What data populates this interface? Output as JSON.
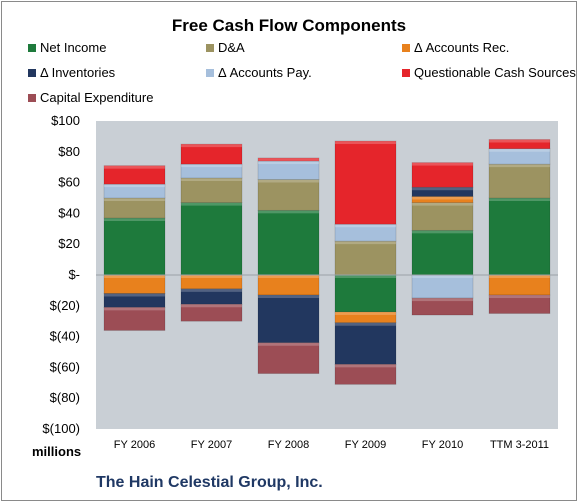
{
  "chart_data": {
    "type": "bar",
    "title": "Free Cash Flow Components",
    "categories": [
      "FY 2006",
      "FY 2007",
      "FY 2008",
      "FY 2009",
      "FY 2010",
      "TTM 3-2011"
    ],
    "series": [
      {
        "name": "Net Income",
        "color": "#1e7a3c",
        "values": [
          37,
          47,
          42,
          -24,
          29,
          50
        ]
      },
      {
        "name": "D&A",
        "color": "#9c9361",
        "values": [
          13,
          16,
          20,
          22,
          18,
          22
        ]
      },
      {
        "name": "Δ Accounts Rec.",
        "color": "#e8811d",
        "values": [
          -12,
          -9,
          -13,
          -7,
          4,
          -13
        ]
      },
      {
        "name": "Δ Inventories",
        "color": "#22375f",
        "values": [
          -9,
          -10,
          -31,
          -27,
          6,
          0
        ]
      },
      {
        "name": "Δ Accounts Pay.",
        "color": "#a6bfdc",
        "values": [
          9,
          9,
          12,
          11,
          -15,
          10
        ]
      },
      {
        "name": "Questionable Cash Sources",
        "color": "#e5252b",
        "values": [
          12,
          13,
          2,
          54,
          16,
          6
        ]
      },
      {
        "name": "Capital Expenditure",
        "color": "#9c4d55",
        "values": [
          -15,
          -11,
          -20,
          -13,
          -11,
          -12
        ]
      }
    ],
    "ylim": [
      -100,
      100
    ],
    "y_ticks": [
      100,
      80,
      60,
      40,
      20,
      0,
      -20,
      -40,
      -60,
      -80,
      -100
    ],
    "y_tick_labels": [
      "$100",
      "$80",
      "$60",
      "$40",
      "$20",
      "$-",
      "$(20)",
      "$(40)",
      "$(60)",
      "$(80)",
      "$(100)"
    ],
    "ylabel": "",
    "xlabel": "",
    "grid": false,
    "legend": "top",
    "plot_background": "#c9cfd5"
  },
  "units_label": "millions",
  "company_name": "The Hain Celestial Group, Inc."
}
